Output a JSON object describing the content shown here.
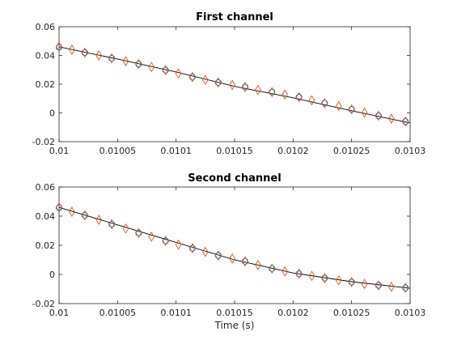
{
  "chart_data": [
    {
      "type": "line",
      "title": "First channel",
      "xlabel": "",
      "ylabel": "",
      "xlim": [
        0.01,
        0.0103
      ],
      "ylim": [
        -0.02,
        0.06
      ],
      "xticks": [
        0.01,
        0.01005,
        0.0101,
        0.01015,
        0.0102,
        0.01025,
        0.0103
      ],
      "xtick_labels": [
        "0.01",
        "0.01005",
        "0.0101",
        "0.01015",
        "0.0102",
        "0.01025",
        "0.0103"
      ],
      "yticks": [
        -0.02,
        0,
        0.02,
        0.04,
        0.06
      ],
      "ytick_labels": [
        "-0.02",
        "0",
        "0.02",
        "0.04",
        "0.06"
      ],
      "series": [
        {
          "style": "line",
          "color": "#000000",
          "x": [
            0.01,
            0.01005,
            0.0101,
            0.01015,
            0.0102,
            0.01025,
            0.0103
          ],
          "y": [
            0.046,
            0.0375,
            0.0285,
            0.0185,
            0.0105,
            0.0015,
            -0.007
          ]
        },
        {
          "style": "circle",
          "color": "#0072bd",
          "x": [
            0.01,
            0.010022,
            0.010045,
            0.010068,
            0.010091,
            0.010114,
            0.010136,
            0.010159,
            0.010182,
            0.010205,
            0.010227,
            0.01025,
            0.010273,
            0.010296
          ],
          "y": [
            0.0458,
            0.042,
            0.038,
            0.034,
            0.0298,
            0.025,
            0.0212,
            0.018,
            0.0145,
            0.011,
            0.0068,
            0.0025,
            -0.002,
            -0.006
          ]
        },
        {
          "style": "diamond",
          "color": "#d95319",
          "x": [
            0.01,
            0.010011,
            0.010022,
            0.010034,
            0.010045,
            0.010057,
            0.010068,
            0.010079,
            0.010091,
            0.010102,
            0.010114,
            0.010125,
            0.010136,
            0.010148,
            0.010159,
            0.01017,
            0.010182,
            0.010193,
            0.010205,
            0.010216,
            0.010227,
            0.010239,
            0.01025,
            0.010261,
            0.010273,
            0.010284,
            0.010296
          ],
          "y": [
            0.046,
            0.044,
            0.042,
            0.04,
            0.038,
            0.036,
            0.034,
            0.032,
            0.0298,
            0.0275,
            0.025,
            0.023,
            0.0212,
            0.0195,
            0.018,
            0.016,
            0.0145,
            0.0128,
            0.011,
            0.0088,
            0.0068,
            0.0048,
            0.0025,
            0.0002,
            -0.002,
            -0.004,
            -0.006
          ]
        }
      ]
    },
    {
      "type": "line",
      "title": "Second channel",
      "xlabel": "Time (s)",
      "ylabel": "",
      "xlim": [
        0.01,
        0.0103
      ],
      "ylim": [
        -0.02,
        0.06
      ],
      "xticks": [
        0.01,
        0.01005,
        0.0101,
        0.01015,
        0.0102,
        0.01025,
        0.0103
      ],
      "xtick_labels": [
        "0.01",
        "0.01005",
        "0.0101",
        "0.01015",
        "0.0102",
        "0.01025",
        "0.0103"
      ],
      "yticks": [
        -0.02,
        0,
        0.02,
        0.04,
        0.06
      ],
      "ytick_labels": [
        "-0.02",
        "0",
        "0.02",
        "0.04",
        "0.06"
      ],
      "series": [
        {
          "style": "line",
          "color": "#000000",
          "x": [
            0.01,
            0.01005,
            0.0101,
            0.01015,
            0.0102,
            0.01025,
            0.0103
          ],
          "y": [
            0.046,
            0.034,
            0.022,
            0.01,
            0.001,
            -0.005,
            -0.0095
          ]
        },
        {
          "style": "circle",
          "color": "#0072bd",
          "x": [
            0.01,
            0.010022,
            0.010045,
            0.010068,
            0.010091,
            0.010114,
            0.010136,
            0.010159,
            0.010182,
            0.010205,
            0.010227,
            0.01025,
            0.010273,
            0.010296
          ],
          "y": [
            0.0458,
            0.0405,
            0.0345,
            0.0285,
            0.023,
            0.018,
            0.013,
            0.009,
            0.004,
            0.0005,
            -0.0025,
            -0.0052,
            -0.0075,
            -0.0092
          ]
        },
        {
          "style": "diamond",
          "color": "#d95319",
          "x": [
            0.01,
            0.010011,
            0.010022,
            0.010034,
            0.010045,
            0.010057,
            0.010068,
            0.010079,
            0.010091,
            0.010102,
            0.010114,
            0.010125,
            0.010136,
            0.010148,
            0.010159,
            0.01017,
            0.010182,
            0.010193,
            0.010205,
            0.010216,
            0.010227,
            0.010239,
            0.01025,
            0.010261,
            0.010273,
            0.010284,
            0.010296
          ],
          "y": [
            0.046,
            0.043,
            0.0405,
            0.0375,
            0.0345,
            0.0315,
            0.0285,
            0.0258,
            0.023,
            0.0205,
            0.018,
            0.0155,
            0.013,
            0.011,
            0.009,
            0.0065,
            0.004,
            0.002,
            0.0005,
            -0.001,
            -0.0025,
            -0.004,
            -0.0052,
            -0.0065,
            -0.0075,
            -0.0085,
            -0.0092
          ]
        }
      ]
    }
  ]
}
